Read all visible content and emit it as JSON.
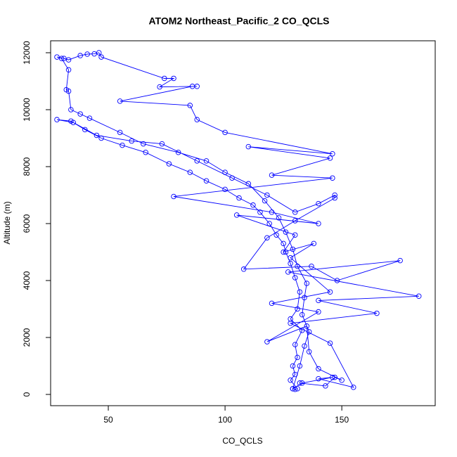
{
  "chart_data": {
    "type": "line",
    "title": "ATOM2 Northeast_Pacific_2 CO_QCLS",
    "x_label": "CO_QCLS",
    "y_label": "Altitude (m)",
    "color": "#0000ff",
    "xlim": [
      25.3,
      190
    ],
    "ylim": [
      -395,
      12420
    ],
    "xticks": [
      50,
      100,
      150
    ],
    "yticks": [
      0,
      2000,
      4000,
      6000,
      8000,
      10000,
      12000
    ],
    "x": [
      129,
      130,
      131,
      128,
      130,
      129,
      131,
      130,
      133,
      128,
      131,
      132,
      130,
      128,
      126,
      125,
      122,
      119,
      115,
      112,
      106,
      100,
      92,
      85,
      76,
      66,
      56,
      47,
      40,
      34,
      28,
      35,
      45,
      60,
      73,
      88,
      103,
      118,
      130,
      140,
      147,
      147,
      130,
      118,
      108,
      137,
      148,
      175,
      127,
      183,
      140,
      165,
      128,
      145,
      155,
      140,
      146,
      133,
      129,
      132,
      134,
      136,
      133,
      134,
      135,
      131,
      129,
      126,
      123,
      117,
      110,
      100,
      92,
      80,
      65,
      55,
      42,
      38,
      34,
      33,
      32,
      33,
      30,
      28,
      31,
      33,
      38,
      41,
      44,
      46,
      47,
      74,
      78,
      72,
      88,
      86,
      55,
      85,
      88,
      100,
      146,
      110,
      145,
      120,
      146,
      78,
      120,
      140,
      105,
      130,
      125,
      138,
      128,
      145,
      120,
      140,
      118,
      135,
      136,
      140,
      150,
      147,
      143,
      132
    ],
    "values": [
      200,
      180,
      200,
      500,
      700,
      1000,
      1300,
      1750,
      2250,
      2650,
      3000,
      3600,
      4100,
      4600,
      5000,
      5300,
      5600,
      6000,
      6400,
      6650,
      6900,
      7200,
      7500,
      7800,
      8100,
      8500,
      8750,
      9000,
      9300,
      9600,
      9650,
      9550,
      9100,
      8900,
      8800,
      8200,
      7600,
      7000,
      6400,
      6700,
      7000,
      6900,
      6100,
      5500,
      4400,
      4500,
      4000,
      4700,
      4300,
      3450,
      3300,
      2850,
      2500,
      1800,
      250,
      550,
      600,
      400,
      200,
      1000,
      1700,
      2200,
      2800,
      3400,
      3900,
      4500,
      5100,
      5700,
      6200,
      6800,
      7400,
      7800,
      8200,
      8500,
      8800,
      9200,
      9700,
      9850,
      10000,
      10650,
      10700,
      11400,
      11800,
      11850,
      11800,
      11750,
      11900,
      11950,
      11960,
      12000,
      11850,
      11100,
      11100,
      10800,
      10820,
      10820,
      10300,
      10150,
      9650,
      9200,
      8450,
      8700,
      8300,
      7700,
      7600,
      6950,
      6400,
      6000,
      6300,
      5600,
      5000,
      5300,
      4800,
      3600,
      3200,
      2900,
      1850,
      2400,
      1500,
      900,
      500,
      600,
      300,
      400
    ]
  }
}
